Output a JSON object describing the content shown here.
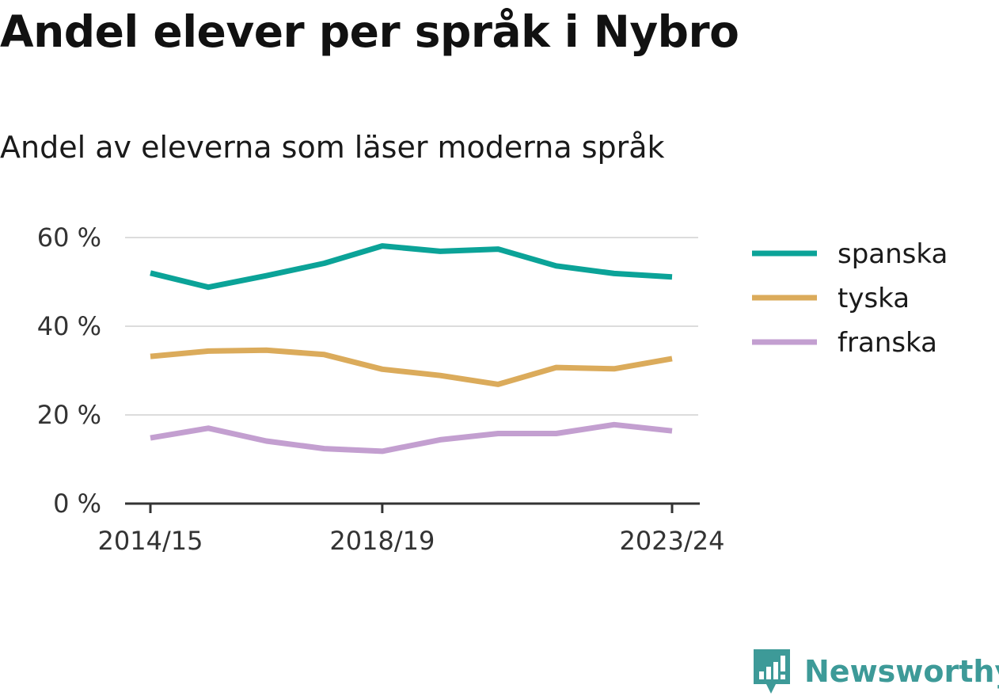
{
  "title": "Andel elever per språk i Nybro",
  "subtitle": "Andel av eleverna som läser moderna språk",
  "brand": {
    "name": "Newsworthy",
    "icon": "newsworthy-logo-icon",
    "color": "#3d9a98"
  },
  "chart_data": {
    "type": "line",
    "x": [
      "2014/15",
      "2015/16",
      "2016/17",
      "2017/18",
      "2018/19",
      "2019/20",
      "2020/21",
      "2021/22",
      "2022/23",
      "2023/24"
    ],
    "x_tick_labels": [
      "2014/15",
      "2018/19",
      "2023/24"
    ],
    "y_tick_labels": [
      "0 %",
      "20 %",
      "40 %",
      "60 %"
    ],
    "y_ticks": [
      0,
      20,
      40,
      60
    ],
    "ylim": [
      0,
      62
    ],
    "grid": true,
    "legend_position": "right",
    "series": [
      {
        "name": "spanska",
        "color": "#0ba398",
        "values": [
          52.0,
          48.8,
          51.4,
          54.2,
          58.1,
          56.9,
          57.4,
          53.6,
          51.9,
          51.1
        ]
      },
      {
        "name": "tyska",
        "color": "#dbab5b",
        "values": [
          33.2,
          34.4,
          34.6,
          33.6,
          30.3,
          28.9,
          26.9,
          30.7,
          30.4,
          32.7
        ]
      },
      {
        "name": "franska",
        "color": "#c39fd0",
        "values": [
          14.8,
          17.0,
          14.1,
          12.4,
          11.8,
          14.4,
          15.8,
          15.8,
          17.8,
          16.4
        ]
      }
    ]
  }
}
